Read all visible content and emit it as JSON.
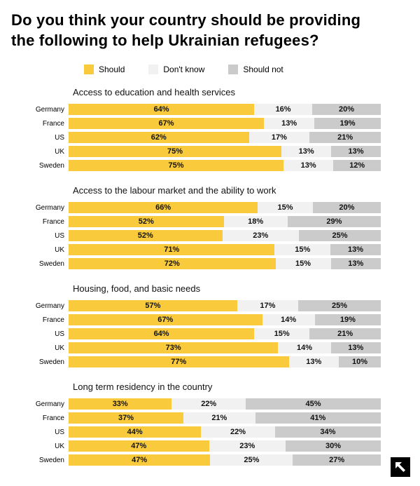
{
  "title_lines": [
    "Do you think your country should be providing",
    "the following to help Ukrainian refugees?"
  ],
  "legend": {
    "items": [
      {
        "label": "Should",
        "color": "#F9CB3C"
      },
      {
        "label": "Don't know",
        "color": "#F1F1F1"
      },
      {
        "label": "Should not",
        "color": "#CBCBCB"
      }
    ]
  },
  "chart_data": {
    "type": "bar",
    "variant": "stacked-horizontal",
    "title": "Do you think your country should be providing the following to help Ukrainian refugees?",
    "unit": "%",
    "xlim": [
      0,
      100
    ],
    "legend_position": "top",
    "series_names": [
      "Should",
      "Don't know",
      "Should not"
    ],
    "colors": [
      "#F9CB3C",
      "#F1F1F1",
      "#CBCBCB"
    ],
    "categories": [
      "Germany",
      "France",
      "US",
      "UK",
      "Sweden"
    ],
    "groups": [
      {
        "title": "Access to education and health services",
        "rows": [
          {
            "country": "Germany",
            "values": [
              64,
              16,
              20
            ]
          },
          {
            "country": "France",
            "values": [
              67,
              13,
              19
            ]
          },
          {
            "country": "US",
            "values": [
              62,
              17,
              21
            ]
          },
          {
            "country": "UK",
            "values": [
              75,
              13,
              13
            ]
          },
          {
            "country": "Sweden",
            "values": [
              75,
              13,
              12
            ]
          }
        ]
      },
      {
        "title": "Access to the labour market and the ability to work",
        "rows": [
          {
            "country": "Germany",
            "values": [
              66,
              15,
              20
            ]
          },
          {
            "country": "France",
            "values": [
              52,
              18,
              29
            ]
          },
          {
            "country": "US",
            "values": [
              52,
              23,
              25
            ]
          },
          {
            "country": "UK",
            "values": [
              71,
              15,
              13
            ]
          },
          {
            "country": "Sweden",
            "values": [
              72,
              15,
              13
            ]
          }
        ]
      },
      {
        "title": "Housing, food, and basic needs",
        "rows": [
          {
            "country": "Germany",
            "values": [
              57,
              17,
              25
            ]
          },
          {
            "country": "France",
            "values": [
              67,
              14,
              19
            ]
          },
          {
            "country": "US",
            "values": [
              64,
              15,
              21
            ]
          },
          {
            "country": "UK",
            "values": [
              73,
              14,
              13
            ]
          },
          {
            "country": "Sweden",
            "values": [
              77,
              13,
              10
            ]
          }
        ]
      },
      {
        "title": "Long term residency in the country",
        "rows": [
          {
            "country": "Germany",
            "values": [
              33,
              22,
              45
            ]
          },
          {
            "country": "France",
            "values": [
              37,
              21,
              41
            ]
          },
          {
            "country": "US",
            "values": [
              44,
              22,
              34
            ]
          },
          {
            "country": "UK",
            "values": [
              47,
              23,
              30
            ]
          },
          {
            "country": "Sweden",
            "values": [
              47,
              25,
              27
            ]
          }
        ]
      }
    ]
  },
  "logo": {
    "icon": "arrow-up-left-icon"
  }
}
